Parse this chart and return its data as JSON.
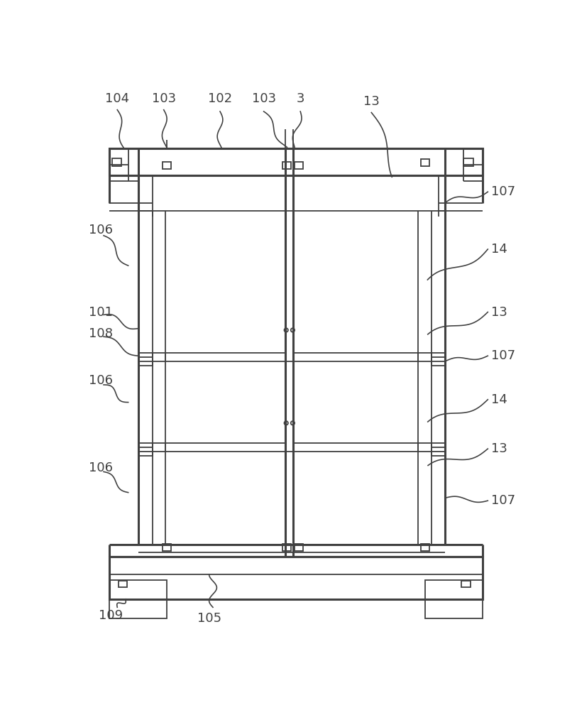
{
  "bg_color": "#ffffff",
  "lc": "#404040",
  "lw": 1.3,
  "tlw": 2.2,
  "fs": 13
}
